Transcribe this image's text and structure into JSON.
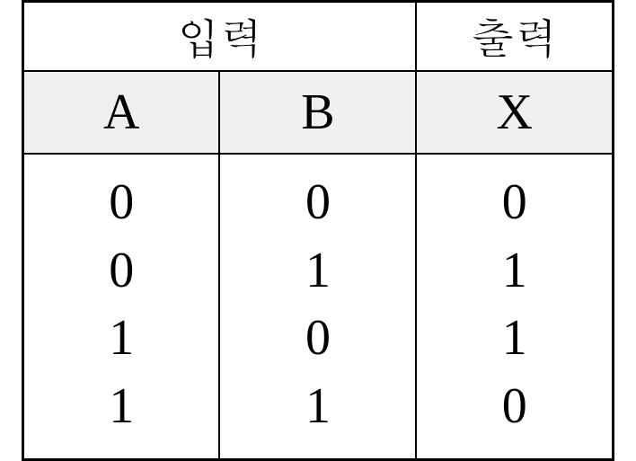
{
  "table": {
    "type": "truth-table",
    "border_color": "#000000",
    "background_color": "#ffffff",
    "header_bg_color": "#f0f0f0",
    "outer_border_width": 3,
    "inner_border_width": 2,
    "group_header_fontsize": 48,
    "col_header_fontsize": 56,
    "data_fontsize": 56,
    "groups": {
      "input_label": "입력",
      "output_label": "출력"
    },
    "columns": {
      "a": "A",
      "b": "B",
      "x": "X"
    },
    "rows": [
      {
        "a": "0",
        "b": "0",
        "x": "0"
      },
      {
        "a": "0",
        "b": "1",
        "x": "1"
      },
      {
        "a": "1",
        "b": "0",
        "x": "1"
      },
      {
        "a": "1",
        "b": "1",
        "x": "0"
      }
    ]
  }
}
